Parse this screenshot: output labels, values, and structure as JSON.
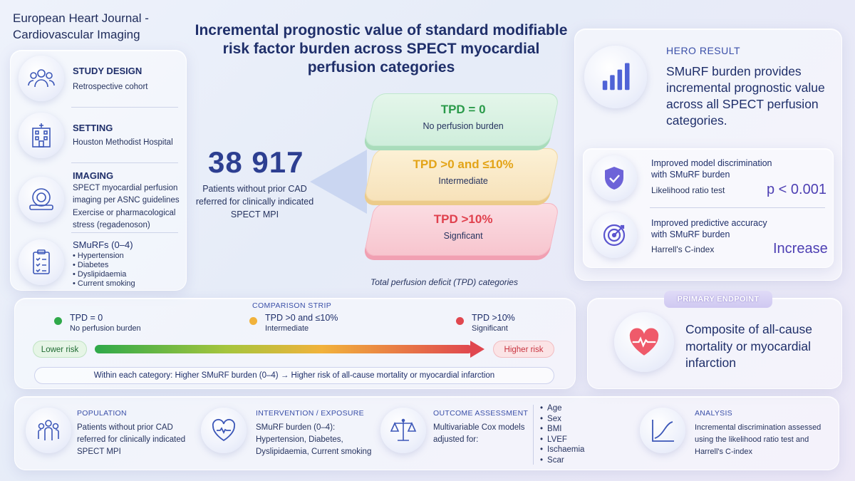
{
  "journal": "European Heart Journal - Cardiovascular Imaging",
  "title": "Incremental prognostic value of standard modifiable risk factor burden across SPECT myocardial perfusion categories",
  "left_panel": {
    "study_design": {
      "label": "STUDY DESIGN",
      "value": "Retrospective cohort",
      "icon": "people-icon"
    },
    "setting": {
      "label": "SETTING",
      "value": "Houston Methodist Hospital",
      "icon": "hospital-icon"
    },
    "imaging": {
      "label": "IMAGING",
      "line1": "SPECT myocardial perfusion imaging per ASNC guidelines",
      "line2": "Exercise or pharmacological stress (regadenoson)",
      "icon": "scanner-icon"
    },
    "smurfs": {
      "label": "SMuRFs (0–4)",
      "items": [
        "Hypertension",
        "Diabetes",
        "Dyslipidaemia",
        "Current smoking"
      ],
      "icon": "checklist-icon"
    }
  },
  "cohort": {
    "number": "38 917",
    "description": "Patients without prior CAD referred for clinically indicated SPECT MPI"
  },
  "tpd_layers": [
    {
      "title": "TPD = 0",
      "subtitle": "No perfusion burden",
      "color": "#2a9a4a"
    },
    {
      "title": "TPD >0 and ≤10%",
      "subtitle": "Intermediate",
      "color": "#e3a418"
    },
    {
      "title": "TPD >10%",
      "subtitle": "Signficant",
      "color": "#e0404d"
    }
  ],
  "tpd_caption": "Total perfusion deficit (TPD) categories",
  "hero": {
    "kicker": "HERO RESULT",
    "text": "SMuRF burden provides incremental prognostic value across all SPECT perfusion categories.",
    "results": [
      {
        "title": "Improved model discrimination with SMuRF burden",
        "sub": "Likelihood ratio test",
        "value": "p < 0.001",
        "icon": "shield-check-icon"
      },
      {
        "title": "Improved predictive accuracy with SMuRF burden",
        "sub": "Harrell's C-index",
        "value": "Increase",
        "icon": "target-icon"
      }
    ]
  },
  "comparison_strip": {
    "kicker": "COMPARISON STRIP",
    "legend": [
      {
        "a": "TPD = 0",
        "b": "No perfusion burden",
        "color": "#2fa94a"
      },
      {
        "a": "TPD >0 and ≤10%",
        "b": "Intermediate",
        "color": "#f1b23b"
      },
      {
        "a": "TPD >10%",
        "b": "Significant",
        "color": "#e0474f"
      }
    ],
    "lower": "Lower risk",
    "higher": "Higher risk",
    "note": "Within each category: Higher SMuRF burden (0–4) → Higher risk of all-cause mortality or myocardial infarction"
  },
  "endpoint": {
    "tab": "PRIMARY ENDPOINT",
    "text": "Composite of all-cause mortality or myocardial infarction",
    "icon": "heart-pulse-icon"
  },
  "bottom": {
    "population": {
      "kicker": "POPULATION",
      "text": "Patients without prior CAD referred for clinically indicated SPECT MPI"
    },
    "intervention": {
      "kicker": "INTERVENTION / EXPOSURE",
      "text": "SMuRF burden (0–4): Hypertension, Diabetes, Dyslipidaemia, Current smoking"
    },
    "outcome": {
      "kicker": "OUTCOME ASSESSMENT",
      "text": "Multivariable Cox models adjusted for:",
      "covariates": [
        "Age",
        "Sex",
        "BMI",
        "LVEF",
        "Ischaemia",
        "Scar"
      ]
    },
    "analysis": {
      "kicker": "ANALYSIS",
      "text": "Incremental discrimination assessed using the likelihood ratio test and Harrell's C-index"
    }
  }
}
